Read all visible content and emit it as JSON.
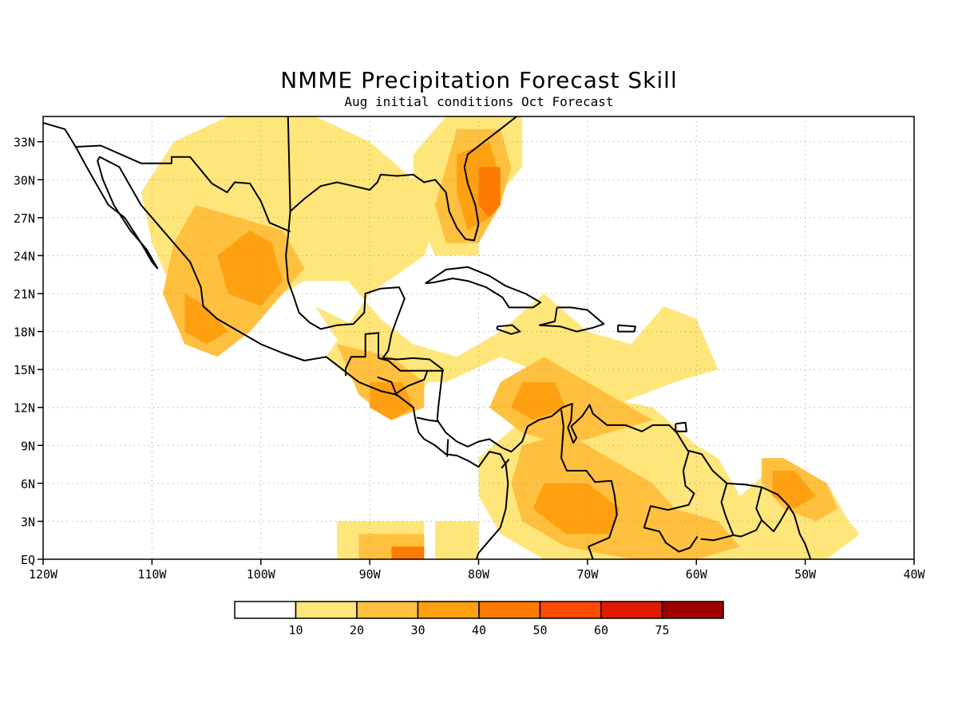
{
  "title": "NMME Precipitation Forecast Skill",
  "subtitle": "Aug initial conditions  Oct Forecast",
  "map": {
    "lon_range": [
      -120,
      -40
    ],
    "lat_range": [
      0,
      35
    ],
    "lon_ticks": [
      "120W",
      "110W",
      "100W",
      "90W",
      "80W",
      "70W",
      "60W",
      "50W",
      "40W"
    ],
    "lat_ticks": [
      "EQ",
      "3N",
      "6N",
      "9N",
      "12N",
      "15N",
      "18N",
      "21N",
      "24N",
      "27N",
      "30N",
      "33N"
    ],
    "grid": true
  },
  "colorbar": {
    "labels": [
      "10",
      "20",
      "30",
      "40",
      "50",
      "60",
      "75"
    ],
    "colors": [
      "#ffffff",
      "#ffe67a",
      "#ffc040",
      "#ffa010",
      "#ff7a00",
      "#ff4a00",
      "#e01a00",
      "#a00000"
    ]
  },
  "skill_regions": [
    {
      "level": 1,
      "poly": [
        [
          -108,
          33
        ],
        [
          -103,
          35
        ],
        [
          -95,
          35
        ],
        [
          -90,
          33
        ],
        [
          -86,
          30
        ],
        [
          -83,
          29
        ],
        [
          -85,
          24
        ],
        [
          -90,
          21
        ],
        [
          -94,
          16
        ],
        [
          -90,
          13
        ],
        [
          -86,
          12
        ],
        [
          -84,
          15
        ],
        [
          -82,
          16
        ],
        [
          -86,
          17
        ],
        [
          -89,
          19
        ],
        [
          -92,
          22
        ],
        [
          -96,
          22
        ],
        [
          -100,
          20
        ],
        [
          -104,
          16
        ],
        [
          -106,
          17
        ],
        [
          -108,
          21
        ],
        [
          -110,
          25
        ],
        [
          -111,
          29
        ]
      ]
    },
    {
      "level": 1,
      "poly": [
        [
          -83,
          35
        ],
        [
          -76,
          35
        ],
        [
          -76,
          31
        ],
        [
          -80,
          27
        ],
        [
          -80,
          24
        ],
        [
          -84,
          24
        ],
        [
          -86,
          28
        ],
        [
          -86,
          32
        ]
      ]
    },
    {
      "level": 1,
      "poly": [
        [
          -95,
          20
        ],
        [
          -88,
          17
        ],
        [
          -82,
          16
        ],
        [
          -78,
          18
        ],
        [
          -74,
          21
        ],
        [
          -70,
          18
        ],
        [
          -66,
          17
        ],
        [
          -63,
          20
        ],
        [
          -60,
          19
        ],
        [
          -58,
          15
        ],
        [
          -62,
          14
        ],
        [
          -68,
          12
        ],
        [
          -72,
          14
        ],
        [
          -78,
          16
        ],
        [
          -83,
          14
        ],
        [
          -88,
          14
        ],
        [
          -92,
          16
        ]
      ]
    },
    {
      "level": 1,
      "poly": [
        [
          -80,
          8
        ],
        [
          -76,
          11
        ],
        [
          -70,
          13
        ],
        [
          -64,
          12
        ],
        [
          -60,
          9
        ],
        [
          -58,
          8
        ],
        [
          -56,
          5
        ],
        [
          -52,
          8
        ],
        [
          -48,
          6
        ],
        [
          -46,
          3
        ],
        [
          -45,
          2
        ],
        [
          -48,
          0
        ],
        [
          -56,
          0
        ],
        [
          -62,
          0
        ],
        [
          -68,
          0
        ],
        [
          -74,
          0
        ],
        [
          -78,
          2
        ],
        [
          -80,
          5
        ]
      ]
    },
    {
      "level": 1,
      "poly": [
        [
          -93,
          3
        ],
        [
          -85,
          3
        ],
        [
          -85,
          0
        ],
        [
          -93,
          0
        ]
      ]
    },
    {
      "level": 1,
      "poly": [
        [
          -84,
          3
        ],
        [
          -80,
          3
        ],
        [
          -80,
          0
        ],
        [
          -84,
          0
        ]
      ]
    },
    {
      "level": 2,
      "poly": [
        [
          -106,
          28
        ],
        [
          -102,
          27
        ],
        [
          -98,
          26
        ],
        [
          -96,
          23
        ],
        [
          -99,
          20
        ],
        [
          -101,
          18
        ],
        [
          -104,
          16
        ],
        [
          -107,
          17
        ],
        [
          -109,
          21
        ],
        [
          -108,
          25
        ]
      ]
    },
    {
      "level": 2,
      "poly": [
        [
          -93,
          17
        ],
        [
          -88,
          16
        ],
        [
          -85,
          14
        ],
        [
          -85,
          12
        ],
        [
          -88,
          11
        ],
        [
          -91,
          13
        ]
      ]
    },
    {
      "level": 2,
      "poly": [
        [
          -82,
          34
        ],
        [
          -78,
          34
        ],
        [
          -77,
          31
        ],
        [
          -78,
          28
        ],
        [
          -80,
          25
        ],
        [
          -83,
          25
        ],
        [
          -84,
          28
        ],
        [
          -83,
          31
        ]
      ]
    },
    {
      "level": 2,
      "poly": [
        [
          -78,
          14
        ],
        [
          -74,
          16
        ],
        [
          -70,
          14
        ],
        [
          -66,
          12
        ],
        [
          -64,
          11
        ],
        [
          -68,
          10
        ],
        [
          -72,
          9
        ],
        [
          -76,
          10
        ],
        [
          -79,
          12
        ]
      ]
    },
    {
      "level": 2,
      "poly": [
        [
          -76,
          9
        ],
        [
          -72,
          10
        ],
        [
          -68,
          8
        ],
        [
          -64,
          6
        ],
        [
          -62,
          4
        ],
        [
          -58,
          3
        ],
        [
          -56,
          1
        ],
        [
          -60,
          0
        ],
        [
          -66,
          0
        ],
        [
          -72,
          1
        ],
        [
          -76,
          3
        ],
        [
          -77,
          6
        ]
      ]
    },
    {
      "level": 2,
      "poly": [
        [
          -54,
          8
        ],
        [
          -52,
          8
        ],
        [
          -48,
          6
        ],
        [
          -47,
          4
        ],
        [
          -49,
          3
        ],
        [
          -52,
          4
        ],
        [
          -54,
          6
        ]
      ]
    },
    {
      "level": 2,
      "poly": [
        [
          -91,
          2
        ],
        [
          -85,
          2
        ],
        [
          -85,
          0
        ],
        [
          -91,
          0
        ]
      ]
    },
    {
      "level": 3,
      "poly": [
        [
          -104,
          24
        ],
        [
          -101,
          26
        ],
        [
          -99,
          25
        ],
        [
          -98,
          22
        ],
        [
          -100,
          20
        ],
        [
          -103,
          21
        ]
      ]
    },
    {
      "level": 3,
      "poly": [
        [
          -107,
          21
        ],
        [
          -105,
          20
        ],
        [
          -103,
          18
        ],
        [
          -105,
          17
        ],
        [
          -107,
          18
        ]
      ]
    },
    {
      "level": 3,
      "poly": [
        [
          -82,
          32
        ],
        [
          -79,
          33
        ],
        [
          -78,
          30
        ],
        [
          -79,
          27
        ],
        [
          -81,
          26
        ],
        [
          -82,
          29
        ]
      ]
    },
    {
      "level": 3,
      "poly": [
        [
          -90,
          14
        ],
        [
          -87,
          14
        ],
        [
          -86,
          12
        ],
        [
          -88,
          11
        ],
        [
          -90,
          12
        ]
      ]
    },
    {
      "level": 3,
      "poly": [
        [
          -76,
          14
        ],
        [
          -73,
          14
        ],
        [
          -72,
          12
        ],
        [
          -75,
          11
        ],
        [
          -77,
          12
        ]
      ]
    },
    {
      "level": 3,
      "poly": [
        [
          -74,
          6
        ],
        [
          -70,
          6
        ],
        [
          -67,
          4
        ],
        [
          -68,
          2
        ],
        [
          -72,
          2
        ],
        [
          -75,
          4
        ]
      ]
    },
    {
      "level": 3,
      "poly": [
        [
          -53,
          7
        ],
        [
          -51,
          7
        ],
        [
          -49,
          5
        ],
        [
          -51,
          4
        ],
        [
          -53,
          5
        ]
      ]
    },
    {
      "level": 4,
      "poly": [
        [
          -80,
          31
        ],
        [
          -78,
          31
        ],
        [
          -78,
          28
        ],
        [
          -79,
          27
        ],
        [
          -80,
          28
        ]
      ]
    },
    {
      "level": 4,
      "poly": [
        [
          -88,
          1
        ],
        [
          -85,
          1
        ],
        [
          -85,
          0
        ],
        [
          -88,
          0
        ]
      ]
    }
  ]
}
